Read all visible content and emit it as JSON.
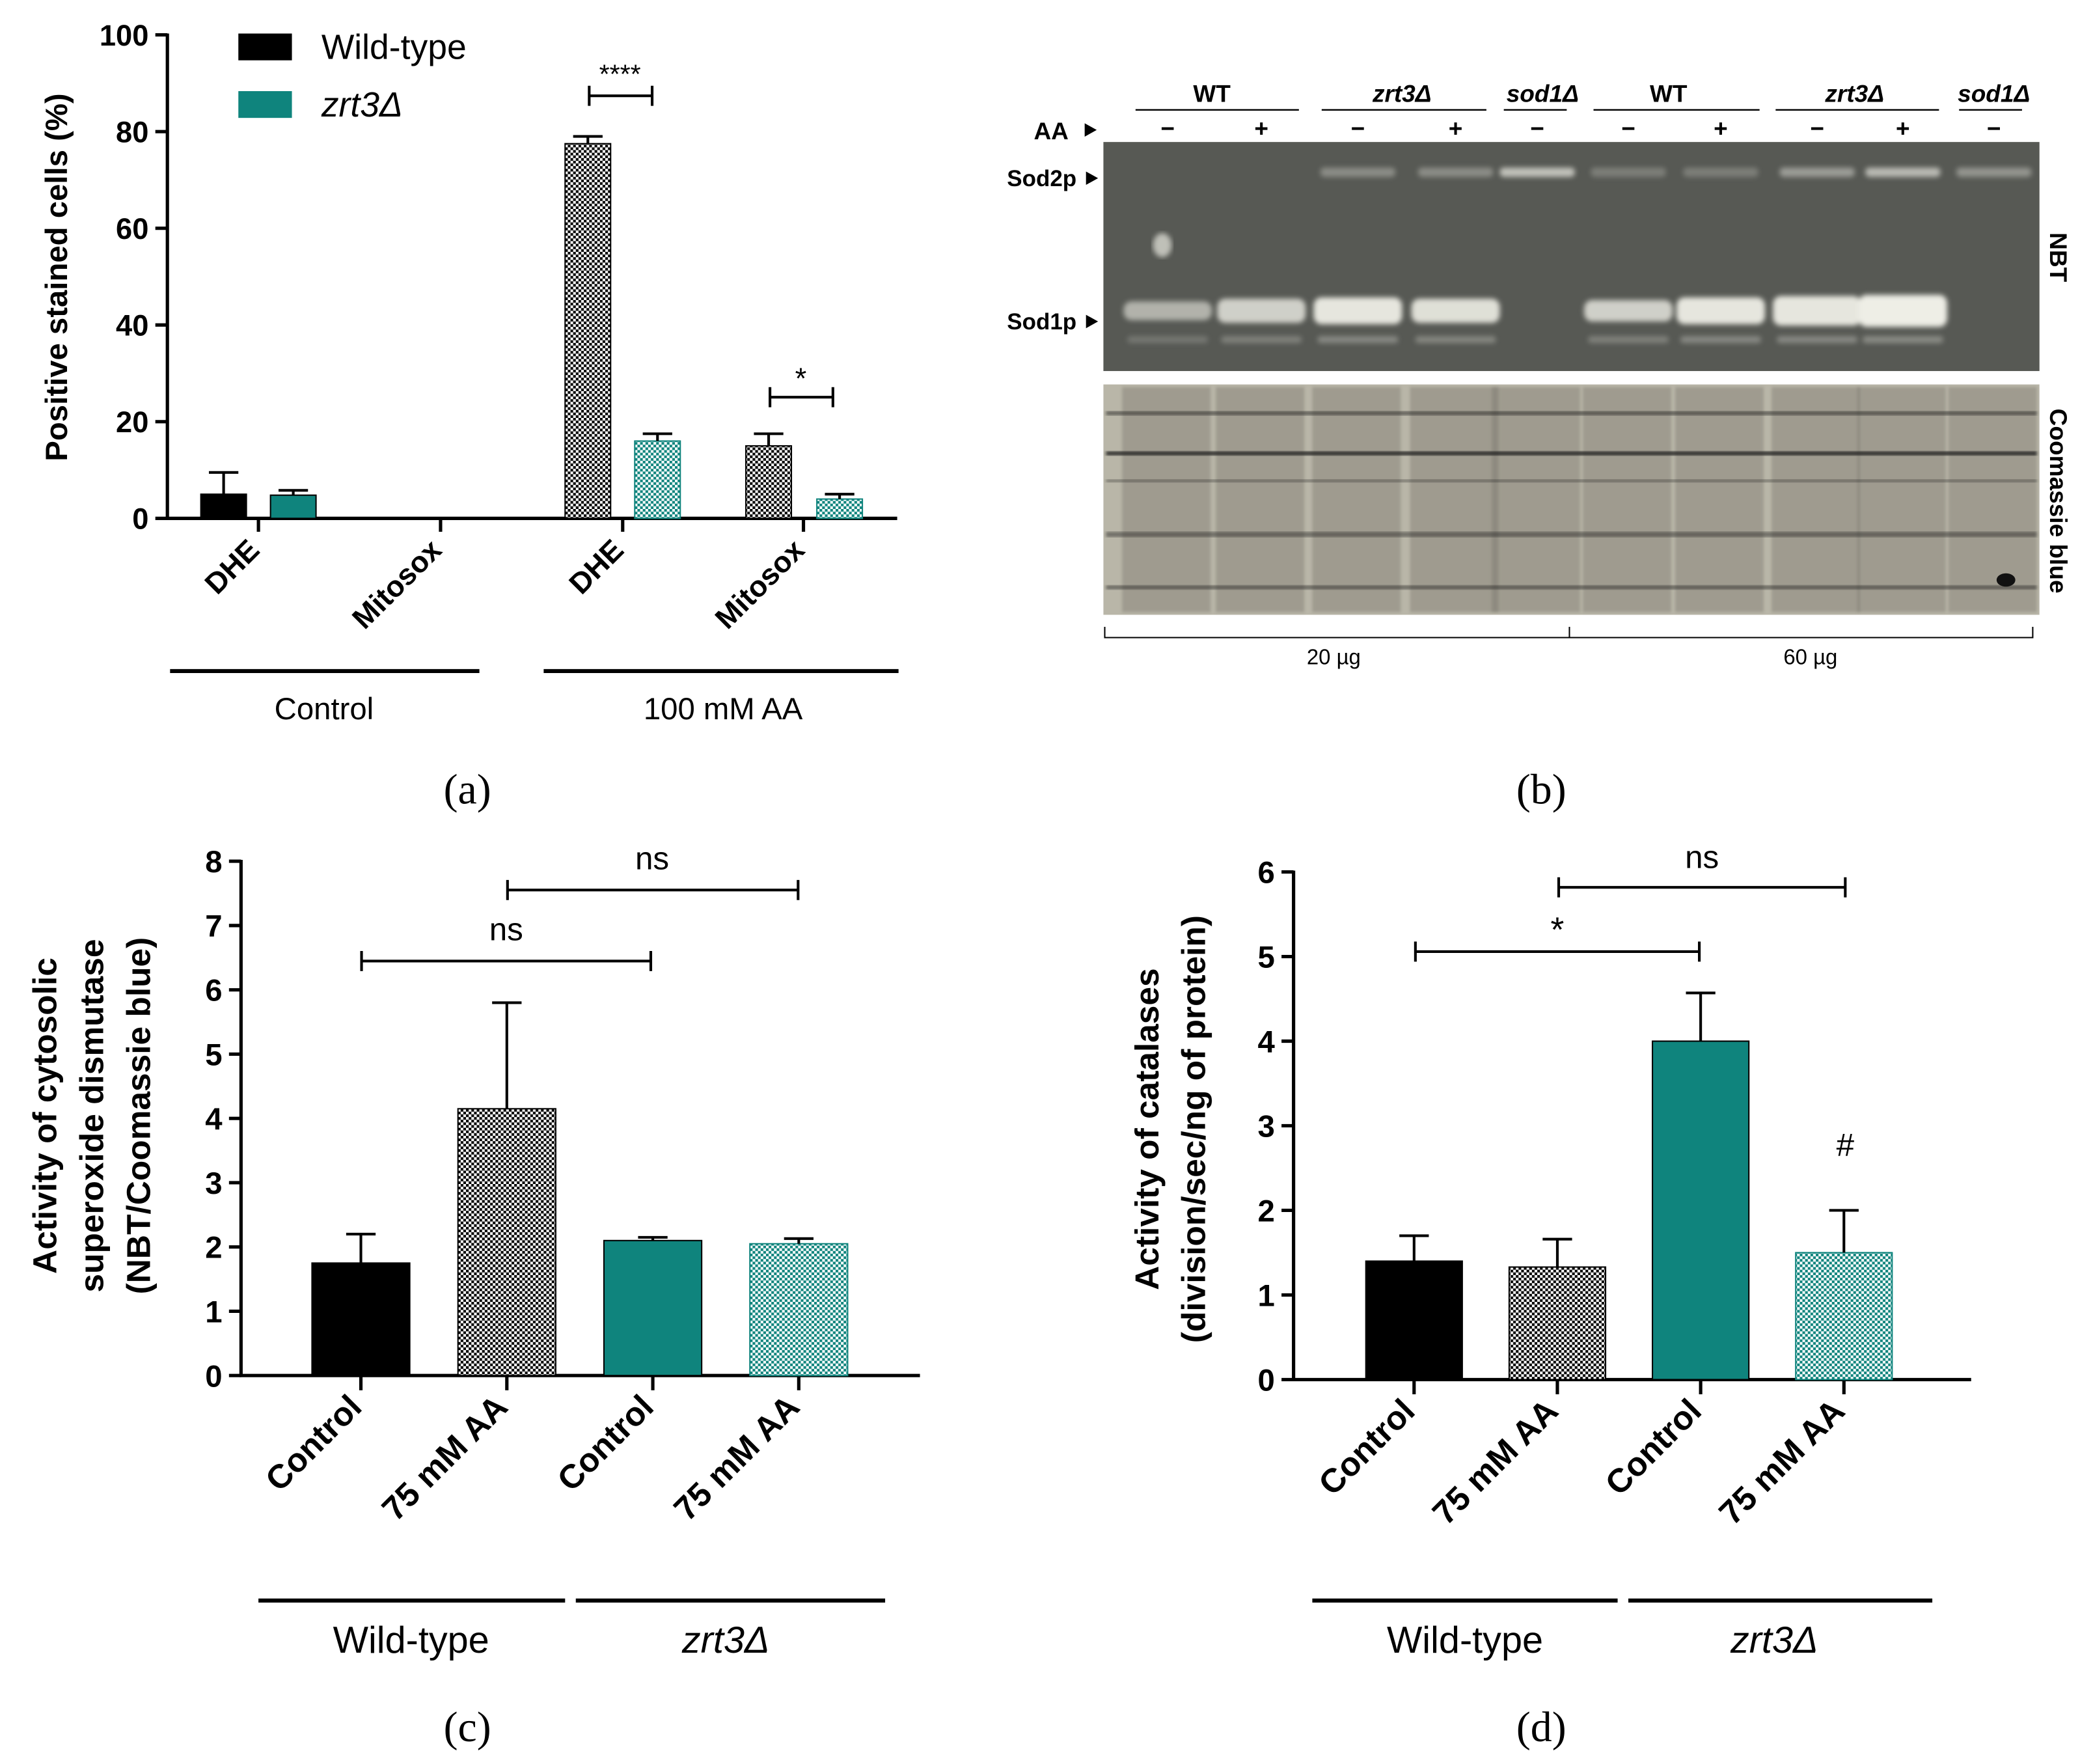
{
  "colors": {
    "wild_type": "#000000",
    "zrt3": "#0f847d",
    "gel_band": "#eeeee6",
    "gel_bg": "#5b5c57",
    "coomassie_bg": "#b9b6a8"
  },
  "chart_data": [
    {
      "panel": "(a)",
      "type": "bar",
      "ylabel": "Positive stained cells (%)",
      "ylim": [
        0,
        100
      ],
      "yticks": [
        "0",
        "20",
        "40",
        "60",
        "80",
        "100"
      ],
      "legend": [
        {
          "name": "Wild-type",
          "color": "#000000"
        },
        {
          "name": "zrt3Δ",
          "color": "#0f847d"
        }
      ],
      "categories": [
        "DHE",
        "Mitosox",
        "DHE",
        "Mitosox"
      ],
      "groups": [
        "Control",
        "100 mM AA"
      ],
      "series": [
        {
          "name": "Wild-type",
          "values": [
            5,
            0,
            77.5,
            15
          ],
          "errors": [
            4.5,
            0,
            1.5,
            2.5
          ]
        },
        {
          "name": "zrt3Δ",
          "values": [
            4.8,
            0,
            16,
            4
          ],
          "errors": [
            1,
            0,
            1.5,
            1
          ]
        }
      ],
      "annotations": [
        "****",
        "*"
      ]
    },
    {
      "panel": "(b)",
      "type": "gel",
      "lane_groups": [
        "WT",
        "zrt3Δ",
        "sod1Δ",
        "WT",
        "zrt3Δ",
        "sod1Δ"
      ],
      "aa_label": "AA",
      "aa_signs": [
        "−",
        "+",
        "−",
        "+",
        "−",
        "−",
        "+",
        "−",
        "+",
        "−"
      ],
      "band_labels": [
        "Sod2p",
        "Sod1p"
      ],
      "side_labels": [
        "NBT",
        "Coomassie blue"
      ],
      "loads": [
        "20 µg",
        "60 µg"
      ]
    },
    {
      "panel": "(c)",
      "type": "bar",
      "ylabel_lines": [
        "Activity of cytosolic",
        "superoxide dismutase",
        "(NBT/Coomassie blue)"
      ],
      "ylim": [
        0,
        8
      ],
      "yticks": [
        "0",
        "1",
        "2",
        "3",
        "4",
        "5",
        "6",
        "7",
        "8"
      ],
      "categories": [
        "Control",
        "75 mM AA",
        "Control",
        "75 mM AA"
      ],
      "groups": [
        "Wild-type",
        "zrt3Δ"
      ],
      "values": [
        1.75,
        4.15,
        2.1,
        2.05
      ],
      "errors": [
        0.45,
        1.65,
        0.05,
        0.08
      ],
      "annotations": [
        "ns",
        "ns"
      ]
    },
    {
      "panel": "(d)",
      "type": "bar",
      "ylabel_lines": [
        "Activity of catalases",
        "(division/sec/ng of protein)"
      ],
      "ylim": [
        0,
        6
      ],
      "yticks": [
        "0",
        "1",
        "2",
        "3",
        "4",
        "5",
        "6"
      ],
      "categories": [
        "Control",
        "75 mM AA",
        "Control",
        "75 mM AA"
      ],
      "groups": [
        "Wild-type",
        "zrt3Δ"
      ],
      "values": [
        1.4,
        1.33,
        4.0,
        1.5
      ],
      "errors": [
        0.3,
        0.33,
        0.57,
        0.5
      ],
      "annotations": [
        "*",
        "ns",
        "#"
      ]
    }
  ]
}
